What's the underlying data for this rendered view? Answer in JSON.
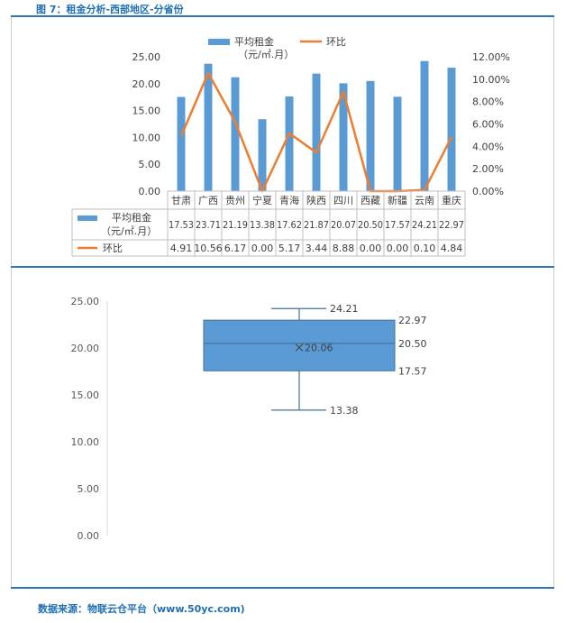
{
  "figure_title": "图 7：租金分析-西部地区-分省份",
  "source": "数据来源：物联云仓平台（www.50yc.com)",
  "colors": {
    "bar": "#5b9bd5",
    "line": "#ed7d31",
    "accent": "#2e75b6",
    "box": "#5b9bd5"
  },
  "chart_data": [
    {
      "type": "bar",
      "categories": [
        "甘肃",
        "广西",
        "贵州",
        "宁夏",
        "青海",
        "陕西",
        "四川",
        "西藏",
        "新疆",
        "云南",
        "重庆"
      ],
      "series": [
        {
          "name": "平均租金\n（元/㎡.月）",
          "legend_line1": "平均租金",
          "legend_line2": "（元/㎡.月）",
          "type": "bar",
          "axis": "left",
          "values": [
            17.53,
            23.71,
            21.19,
            13.38,
            17.62,
            21.87,
            20.07,
            20.5,
            17.57,
            24.21,
            22.97
          ],
          "labels": [
            "17.53",
            "23.71",
            "21.19",
            "13.38",
            "17.62",
            "21.87",
            "20.07",
            "20.50",
            "17.57",
            "24.21",
            "22.97"
          ]
        },
        {
          "name": "环比",
          "type": "line",
          "axis": "right",
          "values": [
            4.91,
            10.56,
            6.17,
            0.0,
            5.17,
            3.44,
            8.88,
            0.0,
            0.0,
            0.1,
            4.84
          ],
          "labels": [
            "4.91",
            "10.56",
            "6.17",
            "0.00",
            "5.17",
            "3.44",
            "8.88",
            "0.00",
            "0.00",
            "0.10",
            "4.84"
          ]
        }
      ],
      "ylim": [
        0,
        25
      ],
      "y_ticks": [
        "0.00",
        "5.00",
        "10.00",
        "15.00",
        "20.00",
        "25.00"
      ],
      "y2lim": [
        0,
        12
      ],
      "y2_ticks": [
        "0.00%",
        "2.00%",
        "4.00%",
        "6.00%",
        "8.00%",
        "10.00%",
        "12.00%"
      ],
      "legend_position": "top-center",
      "data_table": true
    },
    {
      "type": "box",
      "values": {
        "max": 24.21,
        "q3": 22.97,
        "median": 20.5,
        "mean": 20.06,
        "q1": 17.57,
        "min": 13.38
      },
      "labels": {
        "max": "24.21",
        "q3": "22.97",
        "median": "20.50",
        "mean": "20.06",
        "q1": "17.57",
        "min": "13.38"
      },
      "ylim": [
        0,
        25
      ],
      "y_ticks": [
        "0.00",
        "5.00",
        "10.00",
        "15.00",
        "20.00",
        "25.00"
      ]
    }
  ]
}
